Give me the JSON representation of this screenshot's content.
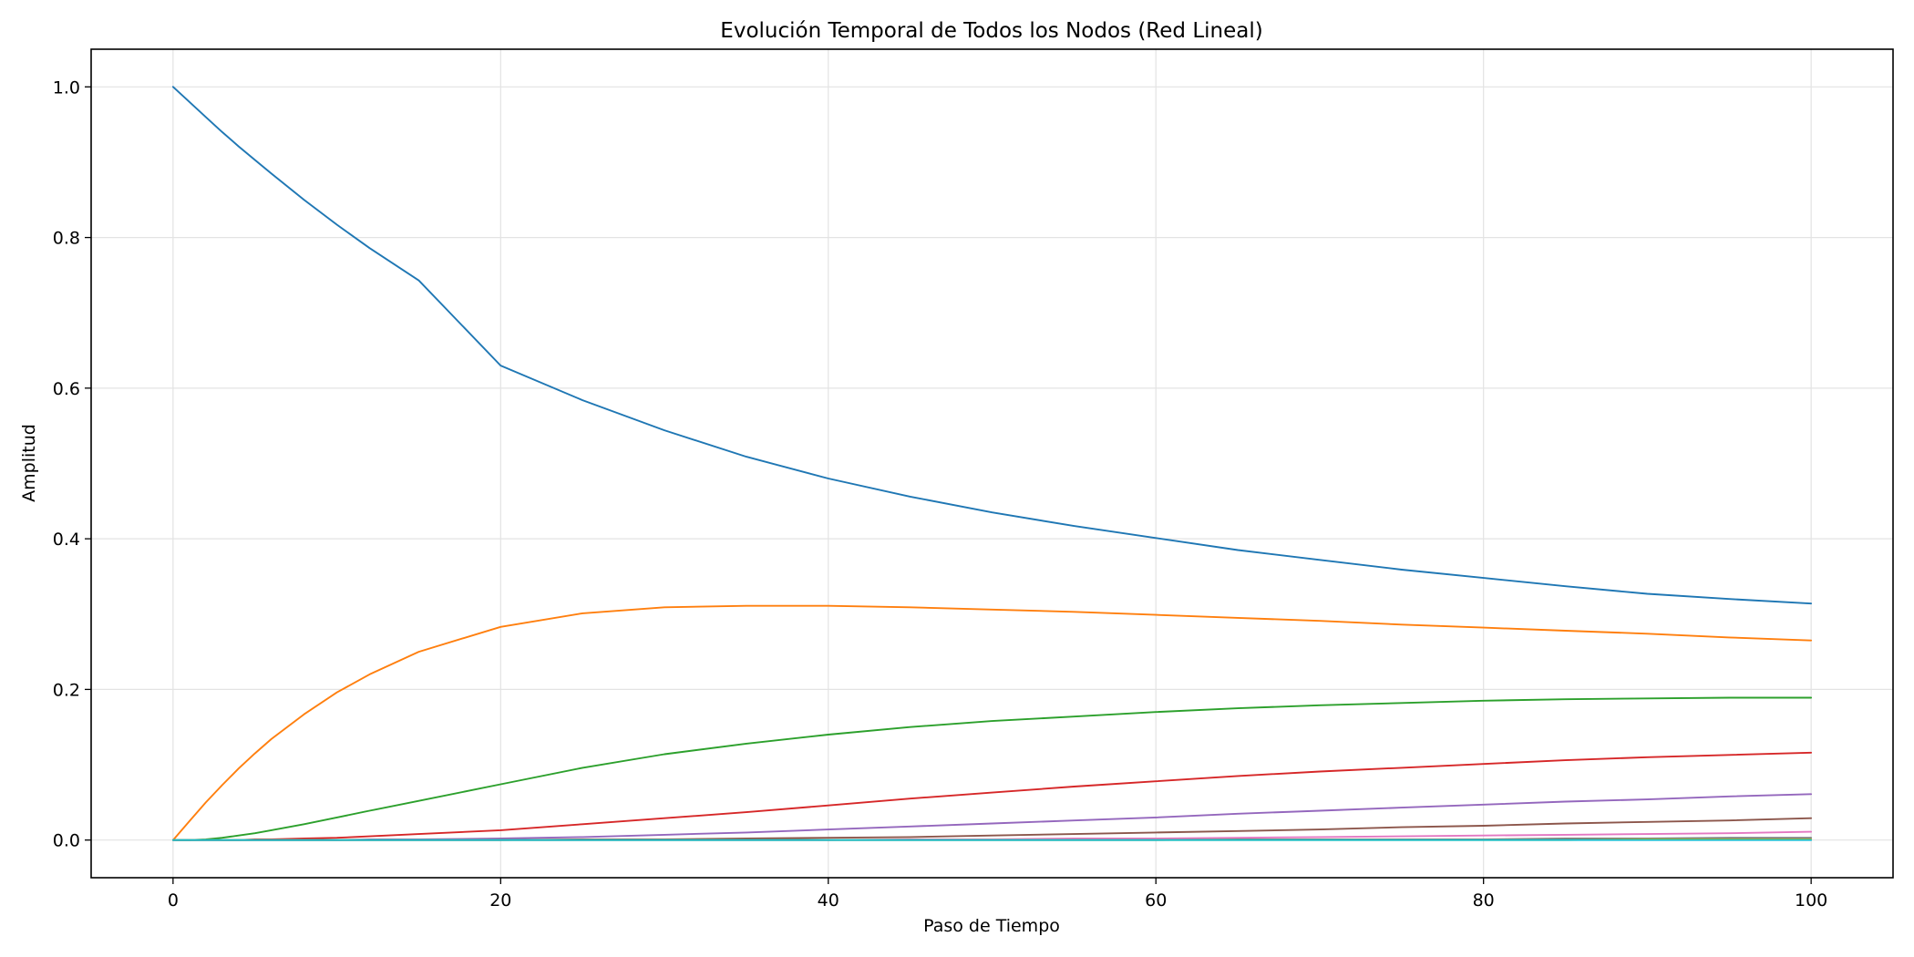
{
  "chart_data": {
    "type": "line",
    "title": "Evolución Temporal de Todos los Nodos (Red Lineal)",
    "xlabel": "Paso de Tiempo",
    "ylabel": "Amplitud",
    "xlim": [
      -5,
      105
    ],
    "ylim": [
      -0.05,
      1.05
    ],
    "xticks": [
      0,
      20,
      40,
      60,
      80,
      100
    ],
    "xtick_labels": [
      "0",
      "20",
      "40",
      "60",
      "80",
      "100"
    ],
    "yticks": [
      0.0,
      0.2,
      0.4,
      0.6,
      0.8,
      1.0
    ],
    "ytick_labels": [
      "0.0",
      "0.2",
      "0.4",
      "0.6",
      "0.8",
      "1.0"
    ],
    "grid": true,
    "legend": false,
    "x": [
      0,
      1,
      2,
      3,
      4,
      5,
      6,
      8,
      10,
      12,
      15,
      20,
      25,
      30,
      35,
      40,
      45,
      50,
      55,
      60,
      65,
      70,
      75,
      80,
      85,
      90,
      95,
      100
    ],
    "series": [
      {
        "color": "#1f77b4",
        "values": [
          1.0,
          0.98,
          0.96,
          0.94,
          0.921,
          0.903,
          0.885,
          0.85,
          0.817,
          0.786,
          0.743,
          0.63,
          0.584,
          0.544,
          0.509,
          0.48,
          0.456,
          0.435,
          0.417,
          0.401,
          0.385,
          0.372,
          0.359,
          0.348,
          0.337,
          0.327,
          0.32,
          0.314
        ]
      },
      {
        "color": "#ff7f0e",
        "values": [
          0.0,
          0.025,
          0.05,
          0.073,
          0.095,
          0.115,
          0.134,
          0.167,
          0.196,
          0.22,
          0.25,
          0.283,
          0.301,
          0.309,
          0.311,
          0.311,
          0.309,
          0.306,
          0.303,
          0.299,
          0.295,
          0.291,
          0.286,
          0.282,
          0.278,
          0.274,
          0.269,
          0.265
        ]
      },
      {
        "color": "#2ca02c",
        "values": [
          0.0,
          0.0,
          0.001,
          0.003,
          0.006,
          0.009,
          0.013,
          0.021,
          0.03,
          0.039,
          0.052,
          0.074,
          0.096,
          0.114,
          0.128,
          0.14,
          0.15,
          0.158,
          0.164,
          0.17,
          0.175,
          0.179,
          0.182,
          0.185,
          0.187,
          0.188,
          0.189,
          0.189
        ]
      },
      {
        "color": "#d62728",
        "values": [
          0.0,
          0.0,
          0.0,
          0.0,
          0.0,
          0.001,
          0.001,
          0.002,
          0.003,
          0.005,
          0.008,
          0.013,
          0.021,
          0.029,
          0.037,
          0.046,
          0.055,
          0.063,
          0.071,
          0.078,
          0.085,
          0.091,
          0.096,
          0.101,
          0.106,
          0.11,
          0.113,
          0.116
        ]
      },
      {
        "color": "#9467bd",
        "values": [
          0.0,
          0.0,
          0.0,
          0.0,
          0.0,
          0.0,
          0.0,
          0.0,
          0.0,
          0.001,
          0.001,
          0.002,
          0.004,
          0.007,
          0.01,
          0.014,
          0.018,
          0.022,
          0.026,
          0.03,
          0.035,
          0.039,
          0.043,
          0.047,
          0.051,
          0.054,
          0.058,
          0.061
        ]
      },
      {
        "color": "#8c564b",
        "values": [
          0.0,
          0.0,
          0.0,
          0.0,
          0.0,
          0.0,
          0.0,
          0.0,
          0.0,
          0.0,
          0.0,
          0.0,
          0.001,
          0.001,
          0.002,
          0.003,
          0.004,
          0.006,
          0.008,
          0.01,
          0.012,
          0.014,
          0.017,
          0.019,
          0.022,
          0.024,
          0.026,
          0.029
        ]
      },
      {
        "color": "#e377c2",
        "values": [
          0.0,
          0.0,
          0.0,
          0.0,
          0.0,
          0.0,
          0.0,
          0.0,
          0.0,
          0.0,
          0.0,
          0.0,
          0.0,
          0.0,
          0.0,
          0.0,
          0.001,
          0.001,
          0.002,
          0.002,
          0.003,
          0.004,
          0.005,
          0.006,
          0.007,
          0.008,
          0.009,
          0.011
        ]
      },
      {
        "color": "#7f7f7f",
        "values": [
          0.0,
          0.0,
          0.0,
          0.0,
          0.0,
          0.0,
          0.0,
          0.0,
          0.0,
          0.0,
          0.0,
          0.0,
          0.0,
          0.0,
          0.0,
          0.0,
          0.0,
          0.0,
          0.0,
          0.0,
          0.001,
          0.001,
          0.001,
          0.001,
          0.002,
          0.002,
          0.003,
          0.003
        ]
      },
      {
        "color": "#bcbd22",
        "values": [
          0.0,
          0.0,
          0.0,
          0.0,
          0.0,
          0.0,
          0.0,
          0.0,
          0.0,
          0.0,
          0.0,
          0.0,
          0.0,
          0.0,
          0.0,
          0.0,
          0.0,
          0.0,
          0.0,
          0.0,
          0.0,
          0.0,
          0.0,
          0.0,
          0.0,
          0.001,
          0.001,
          0.001
        ]
      },
      {
        "color": "#17becf",
        "values": [
          0.0,
          0.0,
          0.0,
          0.0,
          0.0,
          0.0,
          0.0,
          0.0,
          0.0,
          0.0,
          0.0,
          0.0,
          0.0,
          0.0,
          0.0,
          0.0,
          0.0,
          0.0,
          0.0,
          0.0,
          0.0,
          0.0,
          0.0,
          0.0,
          0.0,
          0.0,
          0.0,
          0.0
        ]
      }
    ]
  }
}
